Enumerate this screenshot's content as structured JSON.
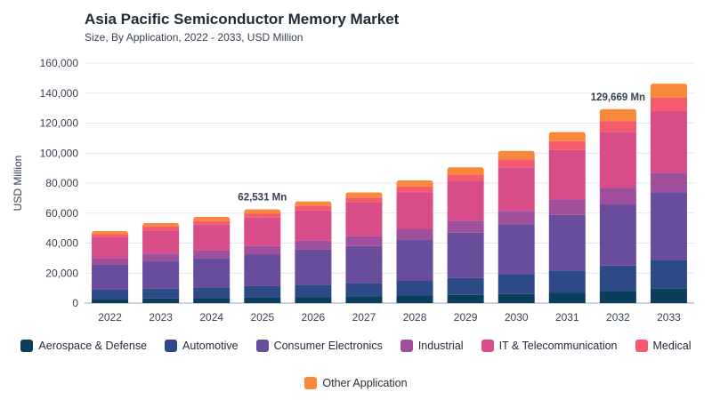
{
  "header": {
    "title": "Asia Pacific Semiconductor Memory Market",
    "subtitle": "Size, By Application, 2022 - 2033, USD Million"
  },
  "chart_data": {
    "type": "bar",
    "stacked": true,
    "xlabel": "",
    "ylabel": "USD Million",
    "ylim": [
      0,
      160000
    ],
    "yticks": [
      0,
      20000,
      40000,
      60000,
      80000,
      100000,
      120000,
      140000,
      160000
    ],
    "ytick_labels": [
      "0",
      "20,000",
      "40,000",
      "60,000",
      "80,000",
      "100,000",
      "120,000",
      "140,000",
      "160,000"
    ],
    "grid": true,
    "legend": "bottom",
    "categories": [
      "2022",
      "2023",
      "2024",
      "2025",
      "2026",
      "2027",
      "2028",
      "2029",
      "2030",
      "2031",
      "2032",
      "2033"
    ],
    "series": [
      {
        "name": "Aerospace & Defense",
        "color": "#0b3d5c",
        "values": [
          2700,
          3100,
          3300,
          3800,
          4100,
          4500,
          5000,
          5500,
          6100,
          6800,
          8200,
          9700
        ]
      },
      {
        "name": "Automotive",
        "color": "#2d4a86",
        "values": [
          6200,
          6600,
          7200,
          7500,
          8200,
          9000,
          9800,
          11200,
          13200,
          15000,
          16800,
          19200
        ]
      },
      {
        "name": "Consumer Electronics",
        "color": "#6a4c9c",
        "values": [
          16600,
          18600,
          19500,
          21000,
          23300,
          24500,
          27700,
          30300,
          33200,
          37000,
          40800,
          45100
        ]
      },
      {
        "name": "Industrial",
        "color": "#a04f9c",
        "values": [
          4500,
          4700,
          5200,
          5700,
          6100,
          6500,
          7000,
          8000,
          9000,
          10200,
          11200,
          13000
        ]
      },
      {
        "name": "IT & Telecommunication",
        "color": "#d94c8a",
        "values": [
          14000,
          15500,
          17000,
          19000,
          20000,
          22500,
          24500,
          26500,
          29000,
          33000,
          37000,
          41000
        ]
      },
      {
        "name": "Medical",
        "color": "#f45b6c",
        "values": [
          2000,
          2500,
          2500,
          2800,
          3100,
          3300,
          3800,
          4200,
          5400,
          6000,
          7400,
          9000
        ]
      },
      {
        "name": "Other Application",
        "color": "#f8893c",
        "values": [
          2000,
          2300,
          2800,
          2700,
          3000,
          3500,
          4000,
          4800,
          5600,
          6000,
          7900,
          9300
        ]
      }
    ],
    "annotations": [
      {
        "category": "2025",
        "text": "62,531 Mn"
      },
      {
        "category": "2032",
        "text": "129,669 Mn"
      }
    ]
  }
}
